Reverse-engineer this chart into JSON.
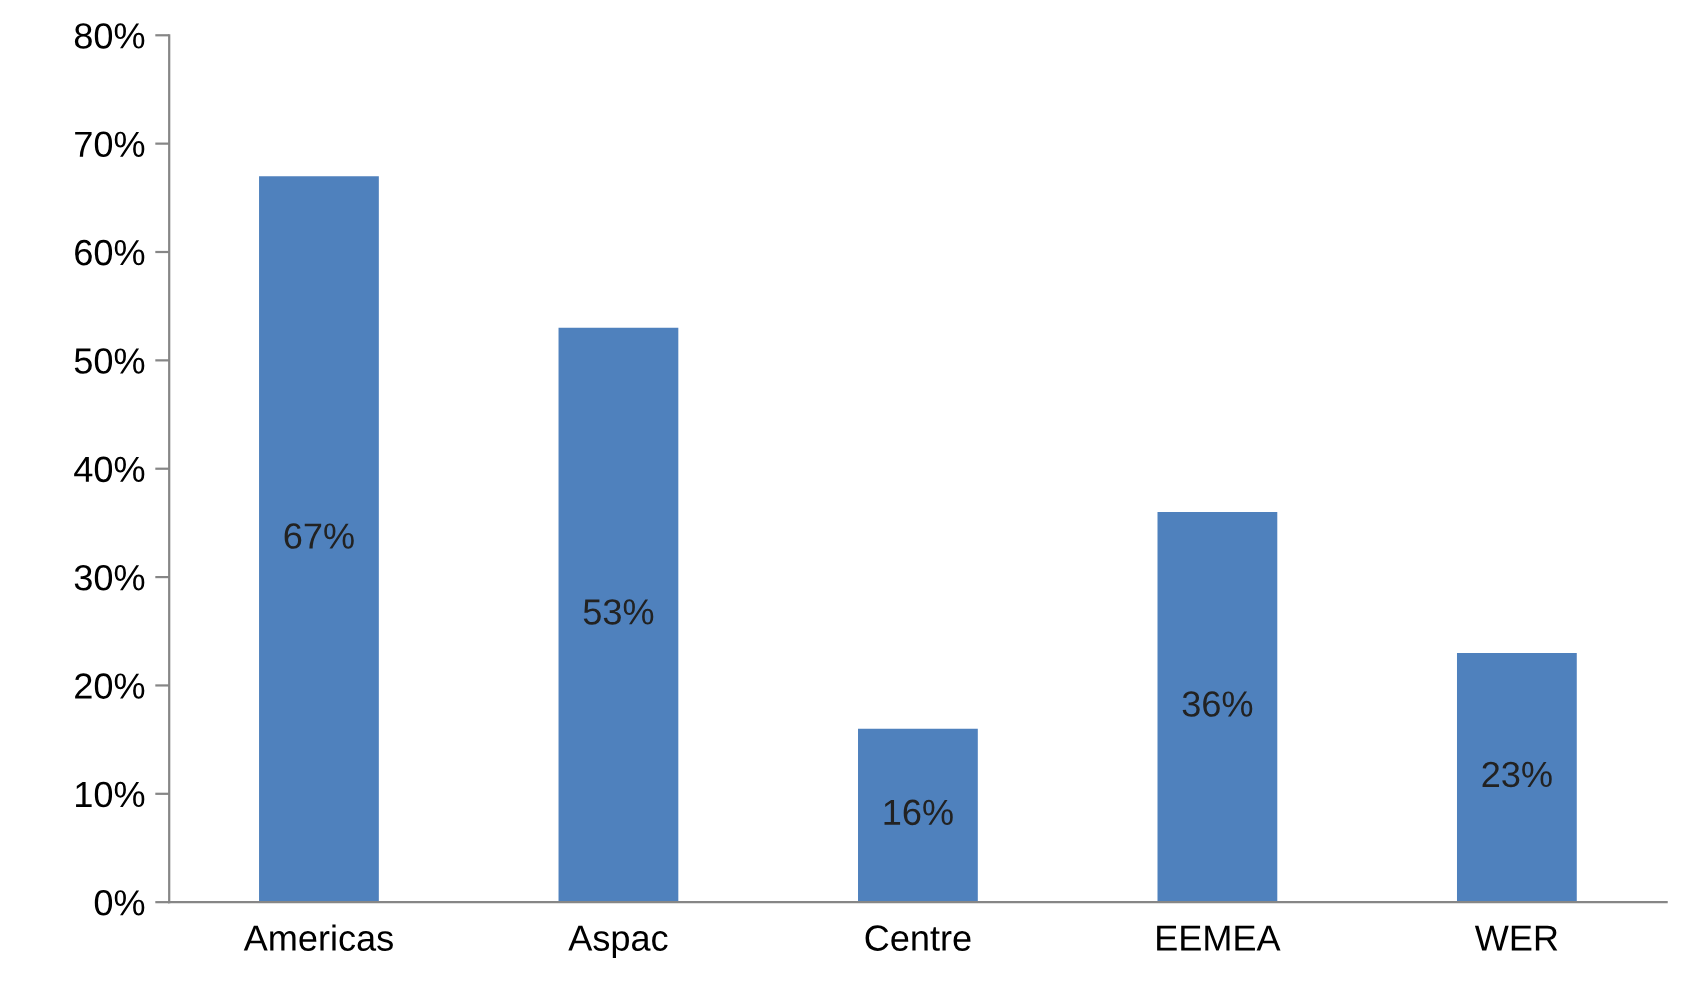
{
  "chart_data": {
    "type": "bar",
    "categories": [
      "Americas",
      "Aspac",
      "Centre",
      "EEMEA",
      "WER"
    ],
    "values": [
      67,
      53,
      16,
      36,
      23
    ],
    "value_labels": [
      "67%",
      "53%",
      "16%",
      "36%",
      "23%"
    ],
    "color": "#4f81bd",
    "ylim": [
      0,
      80
    ],
    "yticks": [
      {
        "value": 0,
        "label": "0%"
      },
      {
        "value": 10,
        "label": "10%"
      },
      {
        "value": 20,
        "label": "20%"
      },
      {
        "value": 30,
        "label": "30%"
      },
      {
        "value": 40,
        "label": "40%"
      },
      {
        "value": 50,
        "label": "50%"
      },
      {
        "value": 60,
        "label": "60%"
      },
      {
        "value": 70,
        "label": "70%"
      },
      {
        "value": 80,
        "label": "80%"
      }
    ],
    "grid": false,
    "legend": false
  }
}
